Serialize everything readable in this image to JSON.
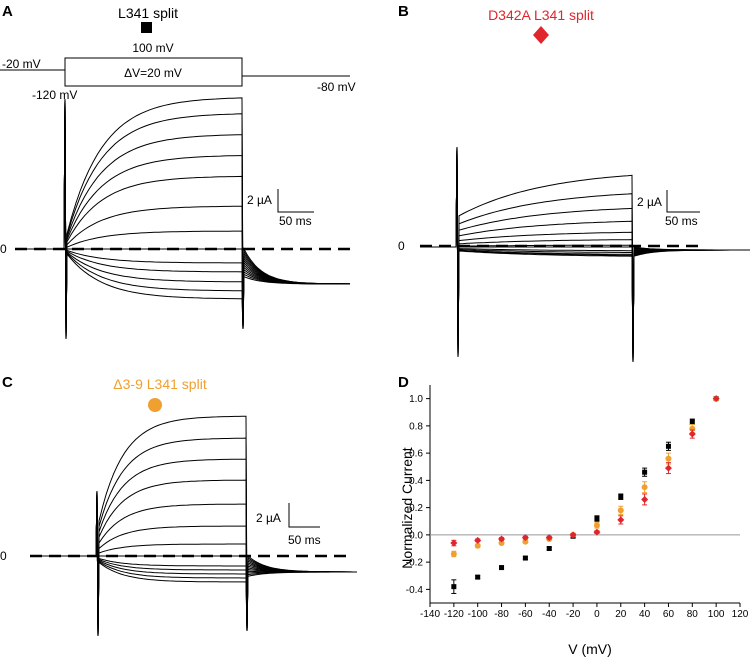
{
  "panels": {
    "A": {
      "letter": "A",
      "title": "L341 split",
      "title_color": "#000000",
      "protocol": {
        "hold": "-20 mV",
        "top": "100 mV",
        "step": "ΔV=20 mV",
        "bottom": "-120 mV",
        "tail": "-80 mV"
      },
      "scale_current": "2 µA",
      "scale_time": "50 ms",
      "zero": "0"
    },
    "B": {
      "letter": "B",
      "title": "D342A L341 split",
      "title_color": "#e0262c",
      "scale_current": "2 µA",
      "scale_time": "50 ms",
      "zero": "0"
    },
    "C": {
      "letter": "C",
      "title": "Δ3-9 L341 split",
      "title_color": "#f0a030",
      "scale_current": "2 µA",
      "scale_time": "50 ms",
      "zero": "0"
    },
    "D": {
      "letter": "D"
    }
  },
  "chart_data": {
    "type": "scatter",
    "xlabel": "V (mV)",
    "ylabel": "Normalized Current",
    "xlim": [
      -140,
      120
    ],
    "ylim": [
      -0.5,
      1.1
    ],
    "x_ticks": [
      "-140",
      "-120",
      "-100",
      "-80",
      "-60",
      "-40",
      "-20",
      "0",
      "20",
      "40",
      "60",
      "80",
      "100",
      "120"
    ],
    "y_ticks": [
      "-0.4",
      "-0.2",
      "0.0",
      "0.2",
      "0.4",
      "0.6",
      "0.8",
      "1.0"
    ],
    "x": [
      -120,
      -100,
      -80,
      -60,
      -40,
      -20,
      0,
      20,
      40,
      60,
      80,
      100
    ],
    "series": [
      {
        "color": "#000000",
        "marker": "square",
        "values": [
          -0.38,
          -0.31,
          -0.24,
          -0.17,
          -0.1,
          -0.01,
          0.12,
          0.28,
          0.46,
          0.65,
          0.83,
          1.0
        ],
        "errors": [
          0.05,
          0.01,
          0.01,
          0.01,
          0.01,
          0.01,
          0.02,
          0.02,
          0.03,
          0.03,
          0.02,
          0.0
        ]
      },
      {
        "color": "#f0a030",
        "marker": "circle",
        "values": [
          -0.14,
          -0.08,
          -0.06,
          -0.05,
          -0.03,
          0.0,
          0.07,
          0.18,
          0.35,
          0.56,
          0.78,
          1.0
        ],
        "errors": [
          0.02,
          0.01,
          0.01,
          0.01,
          0.01,
          0.01,
          0.02,
          0.03,
          0.04,
          0.04,
          0.03,
          0.0
        ]
      },
      {
        "color": "#e0262c",
        "marker": "diamond",
        "values": [
          -0.06,
          -0.04,
          -0.03,
          -0.02,
          -0.02,
          0.0,
          0.02,
          0.11,
          0.26,
          0.49,
          0.74,
          1.0
        ],
        "errors": [
          0.02,
          0.01,
          0.01,
          0.01,
          0.01,
          0.01,
          0.01,
          0.03,
          0.04,
          0.04,
          0.03,
          0.0
        ]
      }
    ]
  }
}
